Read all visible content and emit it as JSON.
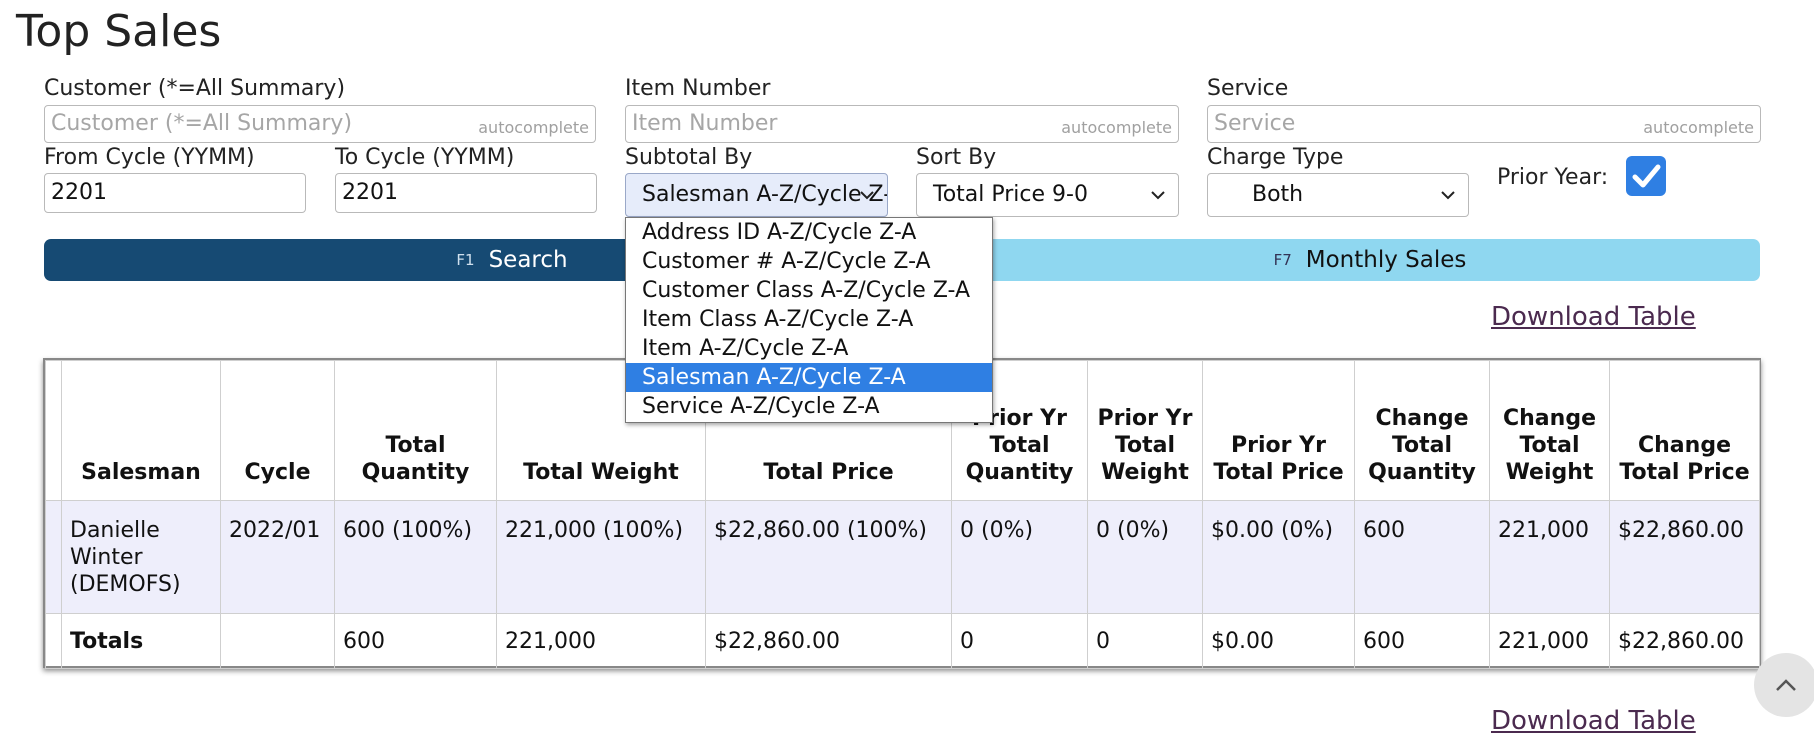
{
  "page": {
    "title": "Top Sales"
  },
  "filters": {
    "customer": {
      "label": "Customer (*=All Summary)",
      "placeholder": "Customer (*=All Summary)",
      "tag": "autocomplete"
    },
    "item_number": {
      "label": "Item Number",
      "placeholder": "Item Number",
      "tag": "autocomplete"
    },
    "service": {
      "label": "Service",
      "placeholder": "Service",
      "tag": "autocomplete"
    },
    "from_cycle": {
      "label": "From Cycle (YYMM)",
      "value": "2201"
    },
    "to_cycle": {
      "label": "To Cycle (YYMM)",
      "value": "2201"
    },
    "subtotal_by": {
      "label": "Subtotal By",
      "value": "Salesman A-Z/Cycle Z-A",
      "options": [
        "Address ID A-Z/Cycle Z-A",
        "Customer # A-Z/Cycle Z-A",
        "Customer Class A-Z/Cycle Z-A",
        "Item Class A-Z/Cycle Z-A",
        "Item A-Z/Cycle Z-A",
        "Salesman A-Z/Cycle Z-A",
        "Service A-Z/Cycle Z-A"
      ],
      "selected_index": 5
    },
    "sort_by": {
      "label": "Sort By",
      "value": "Total Price 9-0"
    },
    "charge_type": {
      "label": "Charge Type",
      "value": "Both"
    },
    "prior_year": {
      "label": "Prior Year:",
      "checked": true
    }
  },
  "actions": {
    "search": {
      "key": "F1",
      "label": "Search"
    },
    "monthly": {
      "key": "F7",
      "label": "Monthly Sales"
    },
    "download_label": "Download Table"
  },
  "table": {
    "headers": [
      "Salesman",
      "Cycle",
      "Total Quantity",
      "Total Weight",
      "Total Price",
      "Prior Yr Total Quantity",
      "Prior Yr Total Weight",
      "Prior Yr Total Price",
      "Change Total Quantity",
      "Change Total Weight",
      "Change Total Price"
    ],
    "rows": [
      [
        "Danielle Winter (DEMOFS)",
        "2022/01",
        "600 (100%)",
        "221,000 (100%)",
        "$22,860.00 (100%)",
        "0 (0%)",
        "0 (0%)",
        "$0.00 (0%)",
        "600",
        "221,000",
        "$22,860.00"
      ]
    ],
    "totals": [
      "Totals",
      "",
      "600",
      "221,000",
      "$22,860.00",
      "0",
      "0",
      "$0.00",
      "600",
      "221,000",
      "$22,860.00"
    ]
  },
  "colors": {
    "primary": "#164a73",
    "secondary": "#8fd7f0",
    "accent": "#2f7fe3",
    "row_tint": "#eeeefb"
  }
}
